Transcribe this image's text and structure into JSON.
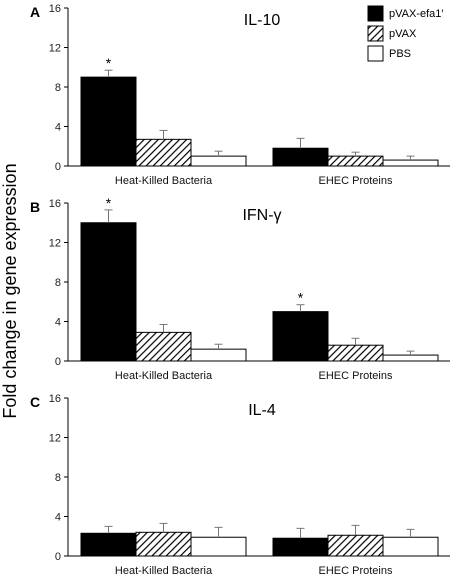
{
  "chart_data": {
    "type": "bar",
    "ylabel": "Fold change in gene expression",
    "categories": [
      "Heat-Killed Bacteria",
      "EHEC Proteins"
    ],
    "legend": {
      "placement": "top-right",
      "series_names": [
        "pVAX-efa1′",
        "pVAX",
        "PBS"
      ]
    },
    "series_styles": [
      {
        "name": "pVAX-efa1′",
        "color": "#000000",
        "pattern": "solid"
      },
      {
        "name": "pVAX",
        "color": "#000000",
        "pattern": "diagonal-hatch"
      },
      {
        "name": "PBS",
        "color": "#ffffff",
        "pattern": "none"
      }
    ],
    "panels": [
      {
        "letter": "A",
        "title": "IL-10",
        "ylim": [
          0,
          16
        ],
        "yticks": [
          0,
          4,
          8,
          12,
          16
        ],
        "values": [
          [
            9.0,
            1.8
          ],
          [
            2.7,
            1.0
          ],
          [
            1.0,
            0.6
          ]
        ],
        "errors": [
          [
            0.7,
            1.0
          ],
          [
            0.9,
            0.4
          ],
          [
            0.5,
            0.4
          ]
        ],
        "significant": [
          [
            true,
            false
          ],
          [
            false,
            false
          ],
          [
            false,
            false
          ]
        ]
      },
      {
        "letter": "B",
        "title": "IFN-γ",
        "ylim": [
          0,
          16
        ],
        "yticks": [
          0,
          4,
          8,
          12,
          16
        ],
        "values": [
          [
            14.0,
            5.0
          ],
          [
            2.9,
            1.6
          ],
          [
            1.2,
            0.6
          ]
        ],
        "errors": [
          [
            1.3,
            0.7
          ],
          [
            0.8,
            0.7
          ],
          [
            0.5,
            0.4
          ]
        ],
        "significant": [
          [
            true,
            true
          ],
          [
            false,
            false
          ],
          [
            false,
            false
          ]
        ]
      },
      {
        "letter": "C",
        "title": "IL-4",
        "ylim": [
          0,
          16
        ],
        "yticks": [
          0,
          4,
          8,
          12,
          16
        ],
        "values": [
          [
            2.3,
            1.8
          ],
          [
            2.4,
            2.1
          ],
          [
            1.9,
            1.9
          ]
        ],
        "errors": [
          [
            0.7,
            1.0
          ],
          [
            0.9,
            1.0
          ],
          [
            1.0,
            0.8
          ]
        ],
        "significant": [
          [
            false,
            false
          ],
          [
            false,
            false
          ],
          [
            false,
            false
          ]
        ]
      }
    ],
    "significance_marker": "*"
  }
}
